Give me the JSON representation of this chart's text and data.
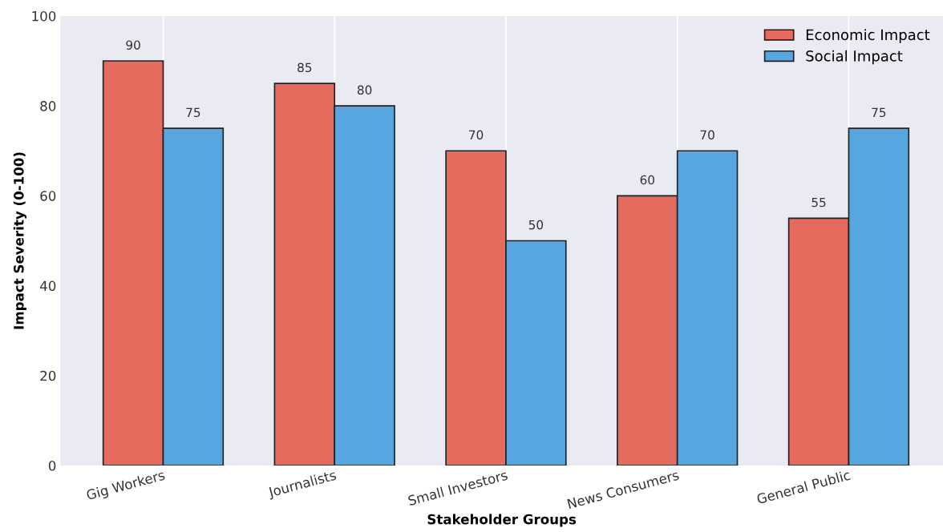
{
  "chart_data": {
    "type": "bar",
    "xlabel": "Stakeholder Groups",
    "ylabel": "Impact Severity (0-100)",
    "categories": [
      "Gig Workers",
      "Journalists",
      "Small Investors",
      "News Consumers",
      "General Public"
    ],
    "series": [
      {
        "name": "Economic Impact",
        "color": "#e66b5f",
        "values": [
          90,
          85,
          70,
          60,
          55
        ]
      },
      {
        "name": "Social Impact",
        "color": "#58a6df",
        "values": [
          75,
          80,
          50,
          70,
          75
        ]
      }
    ],
    "ylim": [
      0,
      100
    ],
    "yticks": [
      0,
      20,
      40,
      60,
      80,
      100
    ],
    "grid": "x",
    "legend": "top right",
    "data_labels": true
  }
}
